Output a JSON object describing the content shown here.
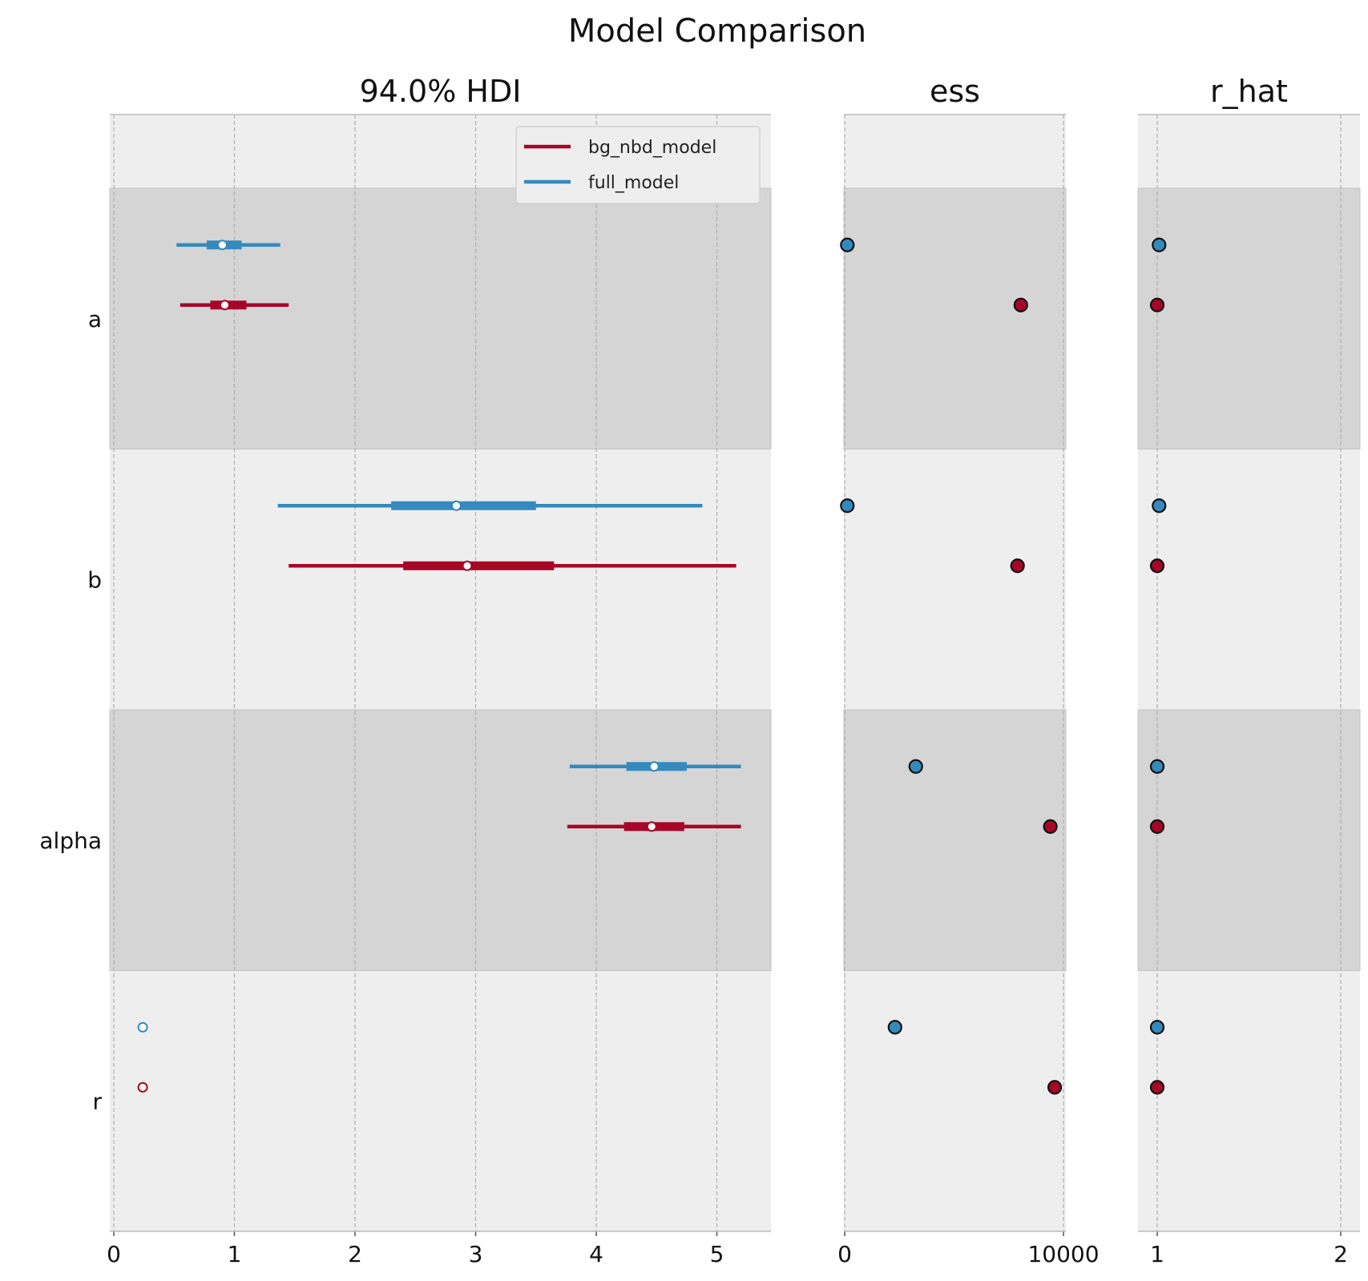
{
  "chart_data": {
    "type": "forest",
    "title": "Model Comparison",
    "variables": [
      "a",
      "b",
      "alpha",
      "r"
    ],
    "legend": {
      "placement": "top-right",
      "entries": [
        "bg_nbd_model",
        "full_model"
      ]
    },
    "series": [
      {
        "name": "bg_nbd_model",
        "color": "#a60628",
        "hdi": [
          {
            "var": "a",
            "low": 0.55,
            "q25": 0.8,
            "median": 0.92,
            "q75": 1.1,
            "high": 1.45
          },
          {
            "var": "b",
            "low": 1.45,
            "q25": 2.4,
            "median": 2.93,
            "q75": 3.65,
            "high": 5.16
          },
          {
            "var": "alpha",
            "low": 3.76,
            "q25": 4.23,
            "median": 4.46,
            "q75": 4.73,
            "high": 5.2
          },
          {
            "var": "r",
            "low": 0.24,
            "q25": 0.24,
            "median": 0.24,
            "q75": 0.24,
            "high": 0.24
          }
        ],
        "ess": [
          8050,
          7900,
          9400,
          9600
        ],
        "r_hat": [
          1.0,
          1.0,
          1.0,
          1.0
        ]
      },
      {
        "name": "full_model",
        "color": "#348abd",
        "hdi": [
          {
            "var": "a",
            "low": 0.52,
            "q25": 0.77,
            "median": 0.9,
            "q75": 1.06,
            "high": 1.38
          },
          {
            "var": "b",
            "low": 1.36,
            "q25": 2.3,
            "median": 2.84,
            "q75": 3.5,
            "high": 4.88
          },
          {
            "var": "alpha",
            "low": 3.78,
            "q25": 4.25,
            "median": 4.48,
            "q75": 4.75,
            "high": 5.2
          },
          {
            "var": "r",
            "low": 0.24,
            "q25": 0.24,
            "median": 0.24,
            "q75": 0.24,
            "high": 0.24
          }
        ],
        "ess": [
          120,
          120,
          3250,
          2300
        ],
        "r_hat": [
          1.01,
          1.01,
          1.0,
          1.0
        ]
      }
    ],
    "panels": [
      {
        "key": "hdi",
        "title": "94.0% HDI",
        "xlim": [
          0,
          5.5
        ],
        "ticks": [
          0,
          1,
          2,
          3,
          4,
          5
        ],
        "tick_labels": [
          "0",
          "1",
          "2",
          "3",
          "4",
          "5"
        ]
      },
      {
        "key": "ess",
        "title": "ess",
        "xlim": [
          0,
          10000
        ],
        "ticks": [
          0,
          10000
        ],
        "tick_labels": [
          "0",
          "10000"
        ]
      },
      {
        "key": "r_hat",
        "title": "r_hat",
        "xlim": [
          0.9,
          2.1
        ],
        "ticks": [
          1,
          2
        ],
        "tick_labels": [
          "1",
          "2"
        ]
      }
    ],
    "grid": true,
    "colors": {
      "band_light": "#eeeeee",
      "band_dark": "#d5d5d5",
      "grid": "#b0b0b0",
      "spine": "#bcbcbc",
      "marker_edge": "#111111"
    }
  }
}
